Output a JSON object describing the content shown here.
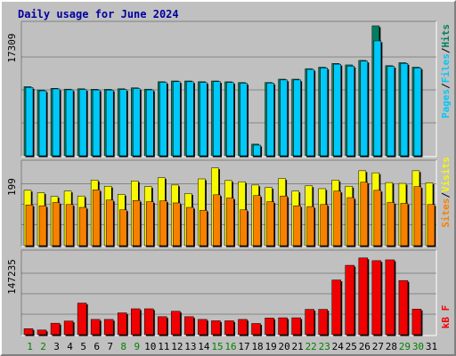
{
  "title": "Daily usage for June 2024",
  "colors": {
    "hits": "#008060",
    "files": "#00c8f8",
    "pages": "#00c8f8",
    "visits": "#f8f800",
    "sites": "#f88000",
    "kbytes": "#f00000",
    "weekday_label": "#000000",
    "weekend_label": "#008000",
    "background": "#c0c0c0",
    "panel_background": "#c0c0c0",
    "gridline": "#000000"
  },
  "side_labels": {
    "top": [
      "Pages",
      "Files",
      "Hits"
    ],
    "middle": [
      "Sites",
      "Visits"
    ],
    "bottom": [
      "kB F"
    ],
    "separator": "/"
  },
  "chart_data": [
    {
      "type": "bar",
      "panel": "pages-files-hits",
      "y_max_label": "17309",
      "ylim": [
        0,
        17309
      ],
      "categories": [
        "1",
        "2",
        "3",
        "4",
        "5",
        "6",
        "7",
        "8",
        "9",
        "10",
        "11",
        "12",
        "13",
        "14",
        "15",
        "16",
        "17",
        "18",
        "19",
        "20",
        "21",
        "22",
        "23",
        "24",
        "25",
        "26",
        "27",
        "28",
        "29",
        "30",
        "31"
      ],
      "weekend_days": [
        "1",
        "2",
        "8",
        "9",
        "15",
        "16",
        "22",
        "23",
        "29",
        "30"
      ],
      "grid": true,
      "series": [
        {
          "name": "Hits",
          "values": [
            9210,
            8760,
            8980,
            8870,
            8920,
            8860,
            8860,
            8920,
            9050,
            8870,
            9860,
            9960,
            9960,
            9860,
            9960,
            9850,
            9750,
            1550,
            9760,
            10200,
            10200,
            11600,
            11800,
            12300,
            12100,
            12700,
            17309,
            12000,
            12400,
            11800,
            0
          ]
        },
        {
          "name": "Files",
          "values": [
            9100,
            8650,
            8900,
            8780,
            8820,
            8760,
            8750,
            8820,
            8950,
            8770,
            9780,
            9870,
            9860,
            9760,
            9880,
            9760,
            9660,
            1420,
            9680,
            10100,
            10100,
            11500,
            11700,
            12200,
            11950,
            12600,
            15300,
            11900,
            12300,
            11700,
            0
          ]
        },
        {
          "name": "Pages",
          "values": [
            9100,
            8650,
            8900,
            8780,
            8820,
            8760,
            8750,
            8820,
            8950,
            8770,
            9780,
            9870,
            9860,
            9760,
            9880,
            9760,
            9660,
            1420,
            9680,
            10100,
            10100,
            11500,
            11700,
            12200,
            11950,
            12600,
            15300,
            11900,
            12300,
            11700,
            0
          ]
        }
      ]
    },
    {
      "type": "bar",
      "panel": "visits-sites",
      "y_max_label": "199",
      "ylim": [
        0,
        199
      ],
      "categories": [
        "1",
        "2",
        "3",
        "4",
        "5",
        "6",
        "7",
        "8",
        "9",
        "10",
        "11",
        "12",
        "13",
        "14",
        "15",
        "16",
        "17",
        "18",
        "19",
        "20",
        "21",
        "22",
        "23",
        "24",
        "25",
        "26",
        "27",
        "28",
        "29",
        "30",
        "31"
      ],
      "grid": true,
      "series": [
        {
          "name": "Visits",
          "values": [
            136,
            130,
            121,
            134,
            122,
            161,
            146,
            126,
            159,
            145,
            167,
            149,
            128,
            164,
            191,
            160,
            157,
            149,
            143,
            165,
            134,
            147,
            140,
            161,
            146,
            184,
            179,
            155,
            153,
            184,
            154
          ]
        },
        {
          "name": "Sites",
          "values": [
            100,
            98,
            106,
            101,
            94,
            137,
            112,
            88,
            111,
            108,
            110,
            105,
            94,
            87,
            125,
            117,
            88,
            123,
            108,
            122,
            98,
            96,
            101,
            134,
            118,
            156,
            136,
            106,
            104,
            145,
            101
          ]
        }
      ]
    },
    {
      "type": "bar",
      "panel": "kbytes",
      "y_max_label": "147235",
      "ylim": [
        0,
        147235
      ],
      "categories": [
        "1",
        "2",
        "3",
        "4",
        "5",
        "6",
        "7",
        "8",
        "9",
        "10",
        "11",
        "12",
        "13",
        "14",
        "15",
        "16",
        "17",
        "18",
        "19",
        "20",
        "21",
        "22",
        "23",
        "24",
        "25",
        "26",
        "27",
        "28",
        "29",
        "30",
        "31"
      ],
      "grid": true,
      "series": [
        {
          "name": "kB F",
          "values": [
            11000,
            8500,
            21000,
            25000,
            58000,
            28000,
            28000,
            40000,
            47500,
            47500,
            33000,
            43000,
            33000,
            28000,
            25500,
            25500,
            28000,
            20500,
            30500,
            31000,
            31000,
            46500,
            46500,
            100500,
            127500,
            141000,
            136000,
            137500,
            99500,
            47000,
            0
          ]
        }
      ]
    }
  ]
}
